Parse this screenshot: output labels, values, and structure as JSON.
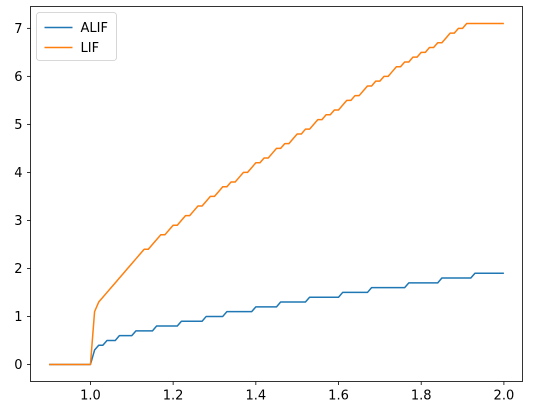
{
  "chart_data": {
    "type": "line",
    "title": "",
    "xlabel": "",
    "ylabel": "",
    "xlim": [
      0.855,
      2.045
    ],
    "ylim": [
      -0.355,
      7.455
    ],
    "xticks": [
      1.0,
      1.2,
      1.4,
      1.6,
      1.8,
      2.0
    ],
    "xtick_labels": [
      "1.0",
      "1.2",
      "1.4",
      "1.6",
      "1.8",
      "2.0"
    ],
    "yticks": [
      0,
      1,
      2,
      3,
      4,
      5,
      6,
      7
    ],
    "ytick_labels": [
      "0",
      "1",
      "2",
      "3",
      "4",
      "5",
      "6",
      "7"
    ],
    "grid": false,
    "legend": {
      "position": "top-left"
    },
    "series": [
      {
        "name": "ALIF",
        "color": "#1f77b4",
        "x": [
          0.9,
          0.91,
          0.92,
          0.93,
          0.94,
          0.95,
          0.96,
          0.97,
          0.98,
          0.99,
          1.0,
          1.01,
          1.02,
          1.03,
          1.04,
          1.05,
          1.06,
          1.07,
          1.08,
          1.09,
          1.1,
          1.11,
          1.12,
          1.13,
          1.14,
          1.15,
          1.16,
          1.17,
          1.18,
          1.19,
          1.2,
          1.21,
          1.22,
          1.23,
          1.24,
          1.25,
          1.26,
          1.27,
          1.28,
          1.29,
          1.3,
          1.31,
          1.32,
          1.33,
          1.34,
          1.35,
          1.36,
          1.37,
          1.38,
          1.39,
          1.4,
          1.41,
          1.42,
          1.43,
          1.44,
          1.45,
          1.46,
          1.47,
          1.48,
          1.49,
          1.5,
          1.51,
          1.52,
          1.53,
          1.54,
          1.55,
          1.56,
          1.57,
          1.58,
          1.59,
          1.6,
          1.61,
          1.62,
          1.63,
          1.64,
          1.65,
          1.66,
          1.67,
          1.68,
          1.69,
          1.7,
          1.71,
          1.72,
          1.73,
          1.74,
          1.75,
          1.76,
          1.77,
          1.78,
          1.79,
          1.8,
          1.81,
          1.82,
          1.83,
          1.84,
          1.85,
          1.86,
          1.87,
          1.88,
          1.89,
          1.9,
          1.91,
          1.92,
          1.93,
          1.94,
          1.95,
          1.96,
          1.97,
          1.98,
          1.99,
          2.0
        ],
        "y": [
          0,
          0,
          0,
          0,
          0,
          0,
          0,
          0,
          0,
          0,
          0,
          0.3,
          0.4,
          0.4,
          0.5,
          0.5,
          0.5,
          0.6,
          0.6,
          0.6,
          0.6,
          0.7,
          0.7,
          0.7,
          0.7,
          0.7,
          0.8,
          0.8,
          0.8,
          0.8,
          0.8,
          0.8,
          0.9,
          0.9,
          0.9,
          0.9,
          0.9,
          0.9,
          1.0,
          1.0,
          1.0,
          1.0,
          1.0,
          1.1,
          1.1,
          1.1,
          1.1,
          1.1,
          1.1,
          1.1,
          1.2,
          1.2,
          1.2,
          1.2,
          1.2,
          1.2,
          1.3,
          1.3,
          1.3,
          1.3,
          1.3,
          1.3,
          1.3,
          1.4,
          1.4,
          1.4,
          1.4,
          1.4,
          1.4,
          1.4,
          1.4,
          1.5,
          1.5,
          1.5,
          1.5,
          1.5,
          1.5,
          1.5,
          1.6,
          1.6,
          1.6,
          1.6,
          1.6,
          1.6,
          1.6,
          1.6,
          1.6,
          1.7,
          1.7,
          1.7,
          1.7,
          1.7,
          1.7,
          1.7,
          1.7,
          1.8,
          1.8,
          1.8,
          1.8,
          1.8,
          1.8,
          1.8,
          1.8,
          1.9,
          1.9,
          1.9,
          1.9,
          1.9,
          1.9,
          1.9,
          1.9
        ]
      },
      {
        "name": "LIF",
        "color": "#ff7f0e",
        "x": [
          0.9,
          0.91,
          0.92,
          0.93,
          0.94,
          0.95,
          0.96,
          0.97,
          0.98,
          0.99,
          1.0,
          1.01,
          1.02,
          1.03,
          1.04,
          1.05,
          1.06,
          1.07,
          1.08,
          1.09,
          1.1,
          1.11,
          1.12,
          1.13,
          1.14,
          1.15,
          1.16,
          1.17,
          1.18,
          1.19,
          1.2,
          1.21,
          1.22,
          1.23,
          1.24,
          1.25,
          1.26,
          1.27,
          1.28,
          1.29,
          1.3,
          1.31,
          1.32,
          1.33,
          1.34,
          1.35,
          1.36,
          1.37,
          1.38,
          1.39,
          1.4,
          1.41,
          1.42,
          1.43,
          1.44,
          1.45,
          1.46,
          1.47,
          1.48,
          1.49,
          1.5,
          1.51,
          1.52,
          1.53,
          1.54,
          1.55,
          1.56,
          1.57,
          1.58,
          1.59,
          1.6,
          1.61,
          1.62,
          1.63,
          1.64,
          1.65,
          1.66,
          1.67,
          1.68,
          1.69,
          1.7,
          1.71,
          1.72,
          1.73,
          1.74,
          1.75,
          1.76,
          1.77,
          1.78,
          1.79,
          1.8,
          1.81,
          1.82,
          1.83,
          1.84,
          1.85,
          1.86,
          1.87,
          1.88,
          1.89,
          1.9,
          1.91,
          1.92,
          1.93,
          1.94,
          1.95,
          1.96,
          1.97,
          1.98,
          1.99,
          2.0
        ],
        "y": [
          0,
          0,
          0,
          0,
          0,
          0,
          0,
          0,
          0,
          0,
          0,
          1.1,
          1.3,
          1.4,
          1.5,
          1.6,
          1.7,
          1.8,
          1.9,
          2.0,
          2.1,
          2.2,
          2.3,
          2.4,
          2.4,
          2.5,
          2.6,
          2.7,
          2.7,
          2.8,
          2.9,
          2.9,
          3.0,
          3.1,
          3.1,
          3.2,
          3.3,
          3.3,
          3.4,
          3.5,
          3.5,
          3.6,
          3.7,
          3.7,
          3.8,
          3.8,
          3.9,
          4.0,
          4.0,
          4.1,
          4.2,
          4.2,
          4.3,
          4.3,
          4.4,
          4.5,
          4.5,
          4.6,
          4.6,
          4.7,
          4.8,
          4.8,
          4.9,
          4.9,
          5.0,
          5.1,
          5.1,
          5.2,
          5.2,
          5.3,
          5.3,
          5.4,
          5.5,
          5.5,
          5.6,
          5.6,
          5.7,
          5.8,
          5.8,
          5.9,
          5.9,
          6.0,
          6.0,
          6.1,
          6.2,
          6.2,
          6.3,
          6.3,
          6.4,
          6.4,
          6.5,
          6.5,
          6.6,
          6.6,
          6.7,
          6.7,
          6.8,
          6.9,
          6.9,
          7.0,
          7.0,
          7.1,
          7.1,
          7.1,
          7.1,
          7.1,
          7.1,
          7.1,
          7.1,
          7.1,
          7.1
        ]
      }
    ]
  }
}
